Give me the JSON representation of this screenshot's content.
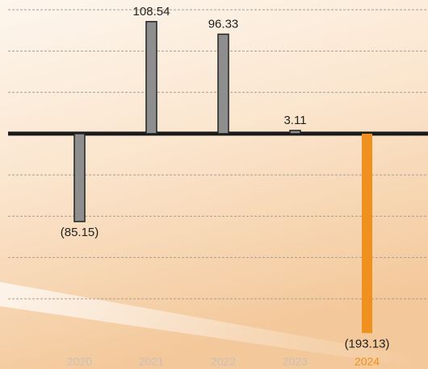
{
  "chart_data": {
    "type": "bar",
    "categories": [
      "2020",
      "2021",
      "2022",
      "2023",
      "2024"
    ],
    "values": [
      -85.15,
      108.54,
      96.33,
      3.11,
      -193.13
    ],
    "value_labels": [
      "(85.15)",
      "108.54",
      "96.33",
      "3.11",
      "(193.13)"
    ],
    "colors": [
      "#8e8e8e",
      "#8e8e8e",
      "#8e8e8e",
      "#8e8e8e",
      "#f0901e"
    ],
    "category_label_colors": [
      "#c9c1b8",
      "#c9c1b8",
      "#c9c1b8",
      "#c9c1b8",
      "#f0901e"
    ],
    "ylim": [
      -210,
      124
    ],
    "yticks": [
      -160,
      -120,
      -80,
      -40,
      0,
      40,
      80,
      120
    ],
    "grid": true
  }
}
